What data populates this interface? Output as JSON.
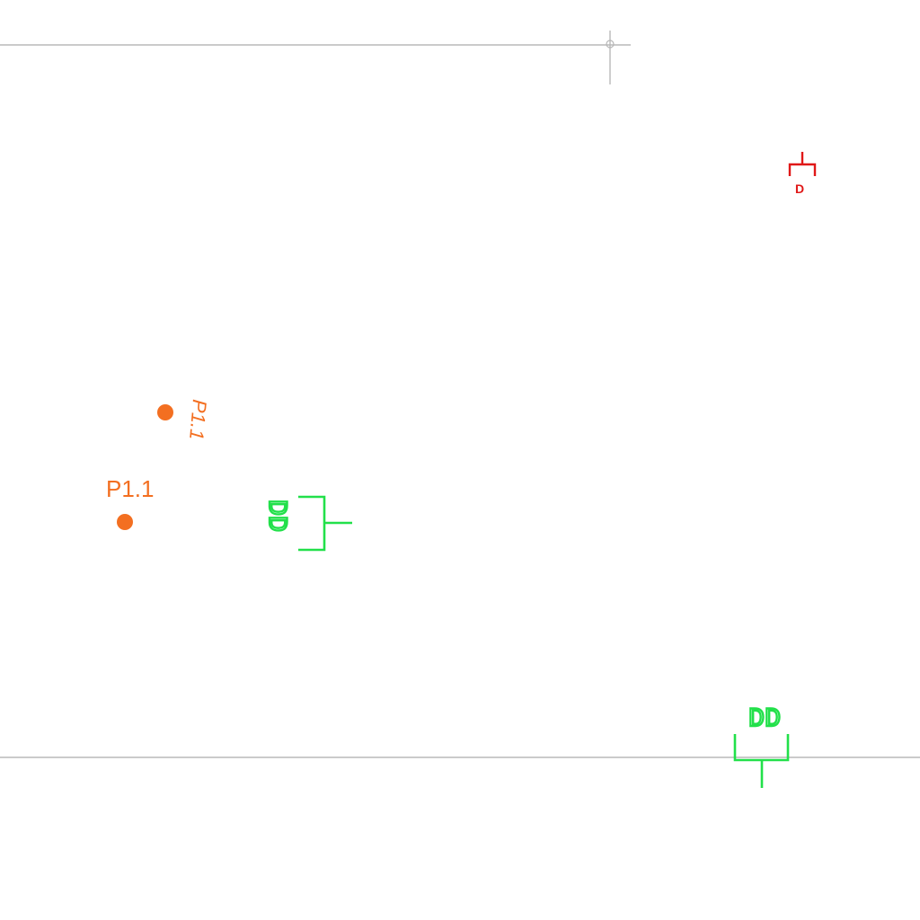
{
  "points": [
    {
      "label": "P1.1",
      "label_orientation": "rotated",
      "color": "#f36f21"
    },
    {
      "label": "P1.1",
      "label_orientation": "horizontal",
      "color": "#f36f21"
    }
  ],
  "symbols": [
    {
      "kind": "bracket-tee",
      "label": "DD",
      "color": "#22e04a",
      "orientation": "left-facing"
    },
    {
      "kind": "bracket-tee",
      "label": "DD",
      "color": "#22e04a",
      "orientation": "up-facing"
    },
    {
      "kind": "bracket-tee",
      "label": "D",
      "color": "#e01818",
      "orientation": "down-facing"
    }
  ],
  "colors": {
    "background": "#ffffff",
    "grid_line": "#b8b8b8",
    "point": "#f36f21",
    "symbol_green": "#22e04a",
    "symbol_red": "#e01818"
  }
}
